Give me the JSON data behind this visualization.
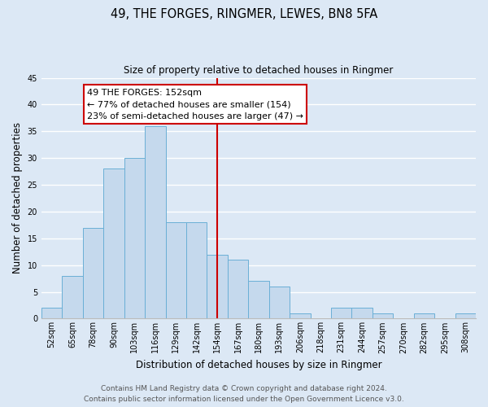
{
  "title": "49, THE FORGES, RINGMER, LEWES, BN8 5FA",
  "subtitle": "Size of property relative to detached houses in Ringmer",
  "xlabel": "Distribution of detached houses by size in Ringmer",
  "ylabel": "Number of detached properties",
  "footer_line1": "Contains HM Land Registry data © Crown copyright and database right 2024.",
  "footer_line2": "Contains public sector information licensed under the Open Government Licence v3.0.",
  "bin_labels": [
    "52sqm",
    "65sqm",
    "78sqm",
    "90sqm",
    "103sqm",
    "116sqm",
    "129sqm",
    "142sqm",
    "154sqm",
    "167sqm",
    "180sqm",
    "193sqm",
    "206sqm",
    "218sqm",
    "231sqm",
    "244sqm",
    "257sqm",
    "270sqm",
    "282sqm",
    "295sqm",
    "308sqm"
  ],
  "bar_values": [
    2,
    8,
    17,
    28,
    30,
    36,
    18,
    18,
    12,
    11,
    7,
    6,
    1,
    0,
    2,
    2,
    1,
    0,
    1,
    0,
    1
  ],
  "bar_color": "#c5d9ed",
  "bar_edge_color": "#6aafd6",
  "vline_x": 8.5,
  "vline_color": "#cc0000",
  "ylim": [
    0,
    45
  ],
  "yticks": [
    0,
    5,
    10,
    15,
    20,
    25,
    30,
    35,
    40,
    45
  ],
  "annotation_title": "49 THE FORGES: 152sqm",
  "annotation_line1": "← 77% of detached houses are smaller (154)",
  "annotation_line2": "23% of semi-detached houses are larger (47) →",
  "annotation_box_facecolor": "#ffffff",
  "annotation_box_edgecolor": "#cc0000",
  "bg_color": "#dce8f5",
  "plot_bg_color": "#dce8f5",
  "grid_color": "#ffffff",
  "title_fontsize": 10.5,
  "subtitle_fontsize": 8.5,
  "ylabel_fontsize": 8.5,
  "xlabel_fontsize": 8.5,
  "tick_fontsize": 7,
  "annotation_fontsize": 8,
  "footer_fontsize": 6.5
}
